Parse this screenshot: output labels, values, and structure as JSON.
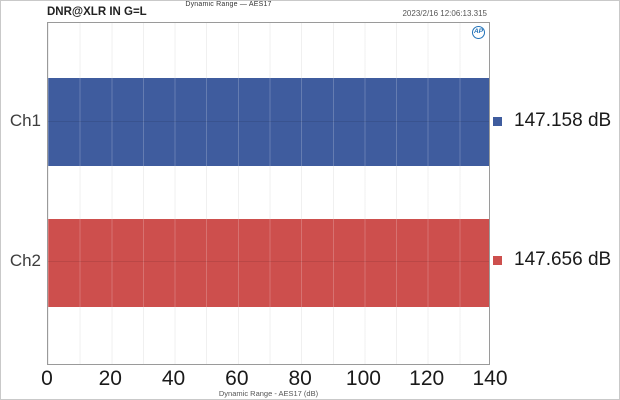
{
  "header": {
    "window_title": "Dynamic Range — AES17",
    "graph_title": "DNR@XLR IN G=L",
    "timestamp": "2023/2/16 12:06:13.315",
    "logo_text": "AP"
  },
  "chart_data": {
    "type": "bar",
    "orientation": "horizontal",
    "title": "DNR@XLR IN G=L",
    "categories": [
      "Ch1",
      "Ch2"
    ],
    "values": [
      147.158,
      147.656
    ],
    "value_labels": [
      "147.158 dB",
      "147.656 dB"
    ],
    "series_colors": [
      "#3F5C9E",
      "#CD4F4D"
    ],
    "xlabel": "Dynamic Range - AES17 (dB)",
    "xlim": [
      0,
      140
    ],
    "xticks": [
      "0",
      "20",
      "40",
      "60",
      "80",
      "100",
      "120",
      "140"
    ],
    "grid": true,
    "gridline_interval_db": 10,
    "legend_position": "right-of-plot"
  }
}
